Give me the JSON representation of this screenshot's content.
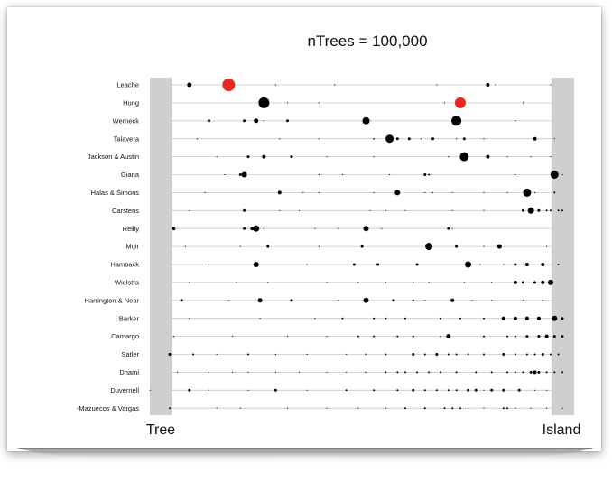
{
  "chart_data": {
    "type": "scatter",
    "title": "nTrees = 100,000",
    "x_min_label": "Tree",
    "x_max_label": "Island",
    "xlim": [
      0,
      1
    ],
    "grid": false,
    "highlight_color": "#e8281e",
    "point_color": "#000000",
    "band_color": "#cfcfcf",
    "rows": [
      {
        "name": "Leache",
        "points": [
          [
            0.05,
            2.5
          ],
          [
            0.15,
            7,
            "red"
          ],
          [
            0.27,
            0.6
          ],
          [
            0.42,
            0.6
          ],
          [
            0.68,
            0.6
          ],
          [
            0.81,
            2
          ],
          [
            0.83,
            0.6
          ],
          [
            0.97,
            0.6
          ]
        ]
      },
      {
        "name": "Hung",
        "points": [
          [
            0.24,
            6
          ],
          [
            0.3,
            0.6
          ],
          [
            0.38,
            0.6
          ],
          [
            0.7,
            0.6
          ],
          [
            0.74,
            6,
            "red"
          ],
          [
            0.9,
            0.6
          ]
        ]
      },
      {
        "name": "Werneck",
        "points": [
          [
            0.1,
            1.5
          ],
          [
            0.19,
            1.5
          ],
          [
            0.22,
            2.5
          ],
          [
            0.24,
            0.6
          ],
          [
            0.3,
            1.5
          ],
          [
            0.5,
            4
          ],
          [
            0.73,
            5.5
          ],
          [
            0.74,
            0.6
          ],
          [
            0.88,
            0.6
          ]
        ]
      },
      {
        "name": "Talavera",
        "points": [
          [
            0.07,
            0.6
          ],
          [
            0.28,
            0.6
          ],
          [
            0.38,
            0.6
          ],
          [
            0.52,
            0.8
          ],
          [
            0.56,
            4.5
          ],
          [
            0.58,
            1.5
          ],
          [
            0.61,
            1.5
          ],
          [
            0.64,
            0.6
          ],
          [
            0.67,
            1.5
          ],
          [
            0.73,
            0.6
          ],
          [
            0.75,
            1.5
          ],
          [
            0.8,
            0.6
          ],
          [
            0.93,
            2
          ],
          [
            0.98,
            0.6
          ]
        ]
      },
      {
        "name": "Jackson & Austin",
        "points": [
          [
            0.12,
            0.6
          ],
          [
            0.2,
            1.5
          ],
          [
            0.24,
            2
          ],
          [
            0.31,
            1.5
          ],
          [
            0.4,
            0.6
          ],
          [
            0.52,
            0.6
          ],
          [
            0.71,
            0.6
          ],
          [
            0.75,
            5
          ],
          [
            0.81,
            2
          ],
          [
            0.86,
            0.6
          ],
          [
            0.92,
            0.6
          ],
          [
            0.97,
            0.6
          ]
        ]
      },
      {
        "name": "Giana",
        "points": [
          [
            0.14,
            0.6
          ],
          [
            0.18,
            1.5
          ],
          [
            0.19,
            3
          ],
          [
            0.38,
            0.6
          ],
          [
            0.44,
            0.6
          ],
          [
            0.56,
            0.6
          ],
          [
            0.65,
            1.5
          ],
          [
            0.66,
            1
          ],
          [
            0.88,
            0.6
          ],
          [
            0.98,
            4.5
          ],
          [
            1.0,
            0.6
          ]
        ]
      },
      {
        "name": "Halas & Simons",
        "points": [
          [
            0.09,
            0.6
          ],
          [
            0.28,
            2
          ],
          [
            0.34,
            0.6
          ],
          [
            0.38,
            0.6
          ],
          [
            0.52,
            0.6
          ],
          [
            0.58,
            3
          ],
          [
            0.65,
            0.6
          ],
          [
            0.67,
            0.6
          ],
          [
            0.72,
            0.6
          ],
          [
            0.8,
            0.6
          ],
          [
            0.86,
            0.6
          ],
          [
            0.91,
            4.5
          ],
          [
            0.93,
            0.6
          ],
          [
            0.98,
            1
          ]
        ]
      },
      {
        "name": "Carstens",
        "points": [
          [
            0.05,
            0.6
          ],
          [
            0.19,
            1.5
          ],
          [
            0.28,
            0.6
          ],
          [
            0.33,
            0.6
          ],
          [
            0.51,
            0.6
          ],
          [
            0.55,
            0.6
          ],
          [
            0.6,
            0.6
          ],
          [
            0.72,
            0.6
          ],
          [
            0.8,
            0.6
          ],
          [
            0.9,
            1.5
          ],
          [
            0.92,
            3.5
          ],
          [
            0.94,
            1.5
          ],
          [
            0.96,
            1
          ],
          [
            0.97,
            1
          ],
          [
            0.99,
            1
          ],
          [
            1.0,
            1
          ]
        ]
      },
      {
        "name": "Reilly",
        "points": [
          [
            0.01,
            2
          ],
          [
            0.19,
            1.5
          ],
          [
            0.21,
            2
          ],
          [
            0.22,
            3.5
          ],
          [
            0.24,
            0.6
          ],
          [
            0.37,
            0.6
          ],
          [
            0.43,
            0.6
          ],
          [
            0.5,
            3
          ],
          [
            0.54,
            0.6
          ],
          [
            0.71,
            1.5
          ],
          [
            0.72,
            0.6
          ]
        ]
      },
      {
        "name": "Muir",
        "points": [
          [
            0.04,
            0.6
          ],
          [
            0.18,
            0.6
          ],
          [
            0.25,
            1.5
          ],
          [
            0.38,
            0.6
          ],
          [
            0.49,
            1.5
          ],
          [
            0.66,
            4
          ],
          [
            0.73,
            1.5
          ],
          [
            0.8,
            0.6
          ],
          [
            0.84,
            2.5
          ],
          [
            0.96,
            0.6
          ]
        ]
      },
      {
        "name": "Hamback",
        "points": [
          [
            0.1,
            0.6
          ],
          [
            0.22,
            3
          ],
          [
            0.35,
            0.6
          ],
          [
            0.47,
            1.5
          ],
          [
            0.53,
            1.5
          ],
          [
            0.63,
            1.5
          ],
          [
            0.76,
            3.5
          ],
          [
            0.79,
            0.6
          ],
          [
            0.85,
            0.6
          ],
          [
            0.88,
            1.5
          ],
          [
            0.91,
            2
          ],
          [
            0.95,
            2
          ],
          [
            0.99,
            1
          ]
        ]
      },
      {
        "name": "Wielstra",
        "points": [
          [
            0.05,
            0.6
          ],
          [
            0.17,
            0.6
          ],
          [
            0.25,
            0.6
          ],
          [
            0.4,
            0.6
          ],
          [
            0.48,
            0.6
          ],
          [
            0.55,
            0.6
          ],
          [
            0.62,
            0.6
          ],
          [
            0.66,
            0.6
          ],
          [
            0.75,
            0.6
          ],
          [
            0.82,
            0.6
          ],
          [
            0.88,
            2
          ],
          [
            0.9,
            1.5
          ],
          [
            0.93,
            1.5
          ],
          [
            0.95,
            2
          ],
          [
            0.97,
            3
          ]
        ]
      },
      {
        "name": "Harrington & Near",
        "points": [
          [
            0.03,
            1.5
          ],
          [
            0.15,
            0.6
          ],
          [
            0.23,
            2.5
          ],
          [
            0.31,
            1.5
          ],
          [
            0.43,
            0.6
          ],
          [
            0.5,
            3
          ],
          [
            0.57,
            1.5
          ],
          [
            0.62,
            1
          ],
          [
            0.65,
            0.6
          ],
          [
            0.72,
            2
          ],
          [
            0.77,
            0.6
          ],
          [
            0.82,
            0.6
          ],
          [
            0.9,
            0.6
          ],
          [
            0.95,
            0.6
          ]
        ]
      },
      {
        "name": "Barker",
        "points": [
          [
            0.05,
            0.6
          ],
          [
            0.23,
            0.6
          ],
          [
            0.37,
            0.6
          ],
          [
            0.44,
            1
          ],
          [
            0.52,
            1
          ],
          [
            0.55,
            1
          ],
          [
            0.6,
            1
          ],
          [
            0.69,
            1
          ],
          [
            0.74,
            1
          ],
          [
            0.8,
            1
          ],
          [
            0.85,
            2
          ],
          [
            0.88,
            2
          ],
          [
            0.91,
            2
          ],
          [
            0.94,
            2
          ],
          [
            0.98,
            3
          ],
          [
            1.0,
            1.5
          ]
        ]
      },
      {
        "name": "Camargo",
        "points": [
          [
            0.01,
            0.6
          ],
          [
            0.16,
            0.6
          ],
          [
            0.3,
            0.6
          ],
          [
            0.4,
            0.6
          ],
          [
            0.48,
            1
          ],
          [
            0.52,
            1
          ],
          [
            0.58,
            1
          ],
          [
            0.62,
            1
          ],
          [
            0.69,
            0.6
          ],
          [
            0.71,
            2.5
          ],
          [
            0.8,
            1
          ],
          [
            0.86,
            1
          ],
          [
            0.88,
            1
          ],
          [
            0.91,
            1.5
          ],
          [
            0.94,
            1.5
          ],
          [
            0.96,
            2
          ],
          [
            0.98,
            1.5
          ],
          [
            1.0,
            1.5
          ]
        ]
      },
      {
        "name": "Satler",
        "points": [
          [
            0.0,
            1.5
          ],
          [
            0.06,
            1
          ],
          [
            0.12,
            0.6
          ],
          [
            0.2,
            1
          ],
          [
            0.27,
            0.6
          ],
          [
            0.35,
            0.6
          ],
          [
            0.45,
            0.6
          ],
          [
            0.5,
            1
          ],
          [
            0.55,
            1
          ],
          [
            0.62,
            1.5
          ],
          [
            0.65,
            1
          ],
          [
            0.68,
            1.5
          ],
          [
            0.71,
            1
          ],
          [
            0.73,
            1
          ],
          [
            0.76,
            1
          ],
          [
            0.8,
            1
          ],
          [
            0.85,
            1.5
          ],
          [
            0.88,
            1
          ],
          [
            0.91,
            1
          ],
          [
            0.93,
            1
          ],
          [
            0.95,
            1.5
          ],
          [
            0.97,
            1
          ],
          [
            0.99,
            1
          ]
        ]
      },
      {
        "name": "Dhami",
        "points": [
          [
            0.02,
            0.6
          ],
          [
            0.1,
            0.6
          ],
          [
            0.16,
            0.6
          ],
          [
            0.2,
            0.6
          ],
          [
            0.27,
            0.6
          ],
          [
            0.33,
            0.6
          ],
          [
            0.4,
            0.6
          ],
          [
            0.45,
            0.6
          ],
          [
            0.5,
            1
          ],
          [
            0.55,
            1
          ],
          [
            0.58,
            1
          ],
          [
            0.6,
            1
          ],
          [
            0.63,
            1
          ],
          [
            0.66,
            1
          ],
          [
            0.69,
            1
          ],
          [
            0.73,
            1
          ],
          [
            0.78,
            1
          ],
          [
            0.82,
            1
          ],
          [
            0.86,
            1
          ],
          [
            0.88,
            1
          ],
          [
            0.9,
            1
          ],
          [
            0.92,
            1.5
          ],
          [
            0.93,
            2
          ],
          [
            0.94,
            1.5
          ],
          [
            0.96,
            1
          ],
          [
            0.98,
            1
          ],
          [
            1.0,
            1
          ]
        ]
      },
      {
        "name": "Duvernell",
        "points": [
          [
            -0.05,
            0.6
          ],
          [
            0.05,
            1.5
          ],
          [
            0.1,
            0.6
          ],
          [
            0.2,
            0.6
          ],
          [
            0.27,
            1.5
          ],
          [
            0.35,
            0.6
          ],
          [
            0.45,
            1
          ],
          [
            0.52,
            1
          ],
          [
            0.58,
            1
          ],
          [
            0.62,
            1.5
          ],
          [
            0.65,
            1
          ],
          [
            0.68,
            1
          ],
          [
            0.71,
            1
          ],
          [
            0.73,
            1
          ],
          [
            0.76,
            1.5
          ],
          [
            0.78,
            1.5
          ],
          [
            0.8,
            0.6
          ],
          [
            0.82,
            1.5
          ],
          [
            0.85,
            1.5
          ],
          [
            0.89,
            1.5
          ],
          [
            0.93,
            0.6
          ],
          [
            0.96,
            0.6
          ]
        ]
      },
      {
        "name": "-Mazuecos & Vargas",
        "points": [
          [
            0.0,
            1
          ],
          [
            0.12,
            0.6
          ],
          [
            0.18,
            0.6
          ],
          [
            0.3,
            0.6
          ],
          [
            0.4,
            0.6
          ],
          [
            0.48,
            0.6
          ],
          [
            0.55,
            0.6
          ],
          [
            0.6,
            1
          ],
          [
            0.65,
            1
          ],
          [
            0.7,
            1
          ],
          [
            0.72,
            1
          ],
          [
            0.74,
            1
          ],
          [
            0.76,
            0.6
          ],
          [
            0.8,
            0.6
          ],
          [
            0.85,
            1
          ],
          [
            0.86,
            1
          ],
          [
            0.88,
            0.6
          ],
          [
            0.92,
            0.6
          ],
          [
            0.96,
            0.6
          ],
          [
            1.0,
            0.6
          ]
        ]
      }
    ]
  }
}
